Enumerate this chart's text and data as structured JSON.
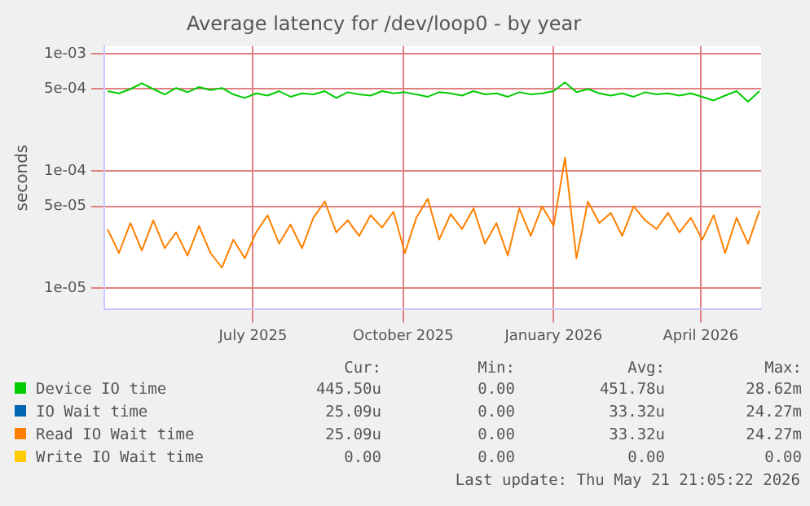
{
  "chart_data": {
    "type": "line",
    "title": "Average latency for /dev/loop0 - by year",
    "ylabel": "seconds",
    "log": "y",
    "grid": true,
    "legend": "bottom",
    "marker": "none",
    "line_style": "solid",
    "x": [
      "2025-04-03",
      "2025-04-10",
      "2025-04-17",
      "2025-04-24",
      "2025-05-01",
      "2025-05-08",
      "2025-05-15",
      "2025-05-22",
      "2025-05-29",
      "2025-06-05",
      "2025-06-12",
      "2025-06-19",
      "2025-06-26",
      "2025-07-03",
      "2025-07-10",
      "2025-07-17",
      "2025-07-24",
      "2025-07-31",
      "2025-08-07",
      "2025-08-14",
      "2025-08-21",
      "2025-08-28",
      "2025-09-04",
      "2025-09-11",
      "2025-09-18",
      "2025-09-25",
      "2025-10-02",
      "2025-10-09",
      "2025-10-16",
      "2025-10-23",
      "2025-10-30",
      "2025-11-06",
      "2025-11-13",
      "2025-11-20",
      "2025-11-27",
      "2025-12-04",
      "2025-12-11",
      "2025-12-18",
      "2025-12-25",
      "2026-01-01",
      "2026-01-08",
      "2026-01-15",
      "2026-01-22",
      "2026-01-29",
      "2026-02-05",
      "2026-02-12",
      "2026-02-19",
      "2026-02-26",
      "2026-03-05",
      "2026-03-12",
      "2026-03-19",
      "2026-03-26",
      "2026-04-02",
      "2026-04-09",
      "2026-04-16",
      "2026-04-23",
      "2026-04-30",
      "2026-05-07"
    ],
    "xlim": [
      "2025-04-01",
      "2026-05-08"
    ],
    "xticks": [
      {
        "value": "2025-07-01",
        "label": "July 2025"
      },
      {
        "value": "2025-10-01",
        "label": "October 2025"
      },
      {
        "value": "2026-01-01",
        "label": "January 2026"
      },
      {
        "value": "2026-04-01",
        "label": "April 2026"
      }
    ],
    "ylim": [
      6.6e-06,
      0.00116
    ],
    "yticks": [
      {
        "value": 1e-05,
        "label": "1e-05"
      },
      {
        "value": 5e-05,
        "label": "5e-05"
      },
      {
        "value": 0.0001,
        "label": "1e-04"
      },
      {
        "value": 0.0005,
        "label": "5e-04"
      },
      {
        "value": 0.001,
        "label": "1e-03"
      }
    ],
    "series": [
      {
        "name": "Device IO time",
        "color": "#00cc00",
        "values": [
          0.00048,
          0.00046,
          0.0005,
          0.00056,
          0.0005,
          0.00045,
          0.00051,
          0.00047,
          0.00052,
          0.00049,
          0.00051,
          0.00045,
          0.00042,
          0.00046,
          0.00044,
          0.00048,
          0.00043,
          0.00046,
          0.00045,
          0.00048,
          0.00042,
          0.00047,
          0.00045,
          0.00044,
          0.00048,
          0.00046,
          0.00047,
          0.00045,
          0.00043,
          0.00047,
          0.00046,
          0.00044,
          0.00048,
          0.00045,
          0.00046,
          0.00043,
          0.00047,
          0.00045,
          0.00046,
          0.00048,
          0.00057,
          0.00047,
          0.0005,
          0.00046,
          0.00044,
          0.00046,
          0.00043,
          0.00047,
          0.00045,
          0.00046,
          0.00044,
          0.00046,
          0.00043,
          0.0004,
          0.00044,
          0.00048,
          0.00039,
          0.00048
        ]
      },
      {
        "name": "IO Wait time",
        "color": "#0066b3",
        "values": [
          null,
          null,
          null,
          null,
          null,
          null,
          null,
          null,
          null,
          null,
          null,
          null,
          null,
          null,
          null,
          null,
          null,
          null,
          null,
          null,
          null,
          null,
          null,
          null,
          null,
          null,
          null,
          null,
          null,
          null,
          null,
          null,
          null,
          null,
          null,
          null,
          null,
          null,
          null,
          null,
          null,
          null,
          null,
          null,
          null,
          null,
          null,
          null,
          null,
          null,
          null,
          null,
          null,
          null,
          null,
          null,
          null,
          null
        ]
      },
      {
        "name": "Read IO Wait time",
        "color": "#ff8000",
        "values": [
          3.2e-05,
          2e-05,
          3.6e-05,
          2.1e-05,
          3.8e-05,
          2.2e-05,
          3e-05,
          1.9e-05,
          3.4e-05,
          2e-05,
          1.5e-05,
          2.6e-05,
          1.8e-05,
          3e-05,
          4.2e-05,
          2.4e-05,
          3.5e-05,
          2.2e-05,
          4e-05,
          5.5e-05,
          3e-05,
          3.8e-05,
          2.8e-05,
          4.2e-05,
          3.3e-05,
          4.5e-05,
          2e-05,
          4e-05,
          5.8e-05,
          2.6e-05,
          4.3e-05,
          3.2e-05,
          4.8e-05,
          2.4e-05,
          3.6e-05,
          1.9e-05,
          4.8e-05,
          2.8e-05,
          5e-05,
          3.4e-05,
          0.00013,
          1.8e-05,
          5.5e-05,
          3.6e-05,
          4.4e-05,
          2.8e-05,
          5e-05,
          3.8e-05,
          3.2e-05,
          4.4e-05,
          3e-05,
          4e-05,
          2.6e-05,
          4.2e-05,
          2e-05,
          4e-05,
          2.4e-05,
          4.6e-05
        ]
      },
      {
        "name": "Write IO Wait time",
        "color": "#ffcc00",
        "values": [
          null,
          null,
          null,
          null,
          null,
          null,
          null,
          null,
          null,
          null,
          null,
          null,
          null,
          null,
          null,
          null,
          null,
          null,
          null,
          null,
          null,
          null,
          null,
          null,
          null,
          null,
          null,
          null,
          null,
          null,
          null,
          null,
          null,
          null,
          null,
          null,
          null,
          null,
          null,
          null,
          null,
          null,
          null,
          null,
          null,
          null,
          null,
          null,
          null,
          null,
          null,
          null,
          null,
          null,
          null,
          null,
          null,
          null
        ]
      }
    ],
    "annotations": [
      "Cur:",
      "Min:",
      "Avg:",
      "Max:",
      "445.50u",
      "0.00",
      "451.78u",
      "28.62m",
      "25.09u",
      "0.00",
      "33.32u",
      "24.27m",
      "25.09u",
      "0.00",
      "33.32u",
      "24.27m",
      "0.00",
      "0.00",
      "0.00",
      "0.00",
      "Last update: Thu May 21 21:05:22 2026"
    ]
  }
}
